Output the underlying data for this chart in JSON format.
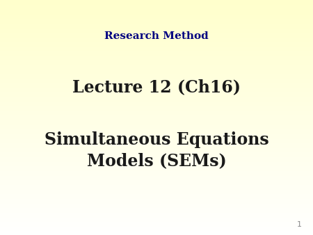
{
  "background_top_color": "#ffffcc",
  "background_bottom_color": "#fffffe",
  "title_text": "Research Method",
  "title_color": "#000080",
  "title_fontsize": 11,
  "title_bold": true,
  "subtitle_text": "Lecture 12 (Ch16)",
  "subtitle_color": "#1a1a1a",
  "subtitle_fontsize": 17,
  "subtitle_bold": true,
  "body_text": "Simultaneous Equations\nModels (SEMs)",
  "body_color": "#1a1a1a",
  "body_fontsize": 17,
  "body_bold": true,
  "page_number": "1",
  "page_number_color": "#888888",
  "page_number_fontsize": 8
}
